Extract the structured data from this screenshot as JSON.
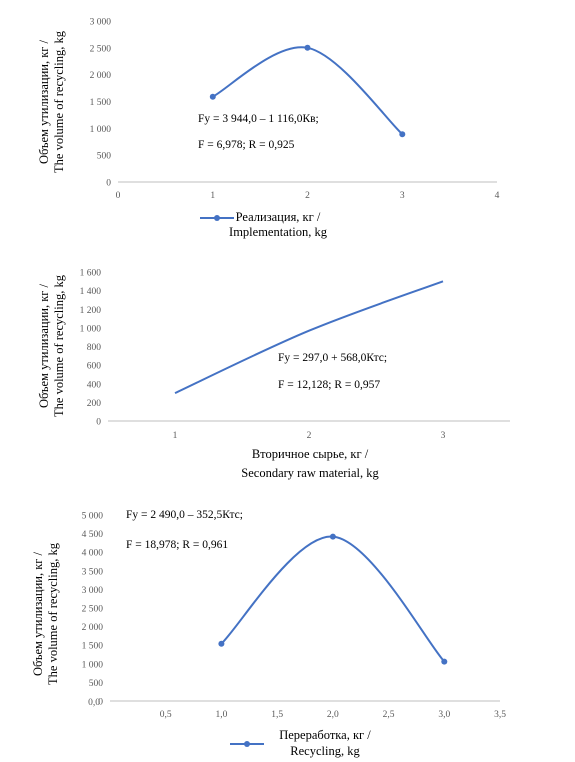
{
  "chart_data": [
    {
      "type": "line",
      "smooth": true,
      "markers": true,
      "x": [
        1,
        2,
        3
      ],
      "series": [
        {
          "name": "Реализация, кг / Implementation, kg",
          "values": [
            1590,
            2500,
            890
          ]
        }
      ],
      "xlim": [
        0,
        4
      ],
      "ylim": [
        0,
        3000
      ],
      "x_ticks": [
        "0",
        "1",
        "2",
        "3",
        "4"
      ],
      "y_ticks": [
        "0",
        "500",
        "1 000",
        "1 500",
        "2 000",
        "2 500",
        "3 000"
      ],
      "ylabel_lines": [
        "Объем утилизации, кг /",
        "The volume of recycling, kg"
      ],
      "legend_lines": [
        "Реализация, кг /",
        "Implementation, kg"
      ],
      "legend_position": "bottom",
      "annotation": [
        "Fу = 3 944,0 – 1 116,0Кв;",
        "F = 6,978; R = 0,925"
      ],
      "grid": false,
      "color": "#4472c4"
    },
    {
      "type": "line",
      "smooth": true,
      "markers": false,
      "x": [
        1,
        2,
        3
      ],
      "series": [
        {
          "name": "Вторичное сырье, кг / Secondary raw material, kg",
          "values": [
            300,
            970,
            1500
          ]
        }
      ],
      "xlim": [
        0.5,
        3.5
      ],
      "ylim": [
        0,
        1600
      ],
      "x_ticks": [
        "1",
        "2",
        "3"
      ],
      "y_ticks": [
        "0",
        "200",
        "400",
        "600",
        "800",
        "1 000",
        "1 200",
        "1 400",
        "1 600"
      ],
      "ylabel_lines": [
        "Объем утилизации, кг /",
        "The volume of recycling, kg"
      ],
      "xlabel_lines": [
        "Вторичное сырье, кг /",
        "Secondary raw material, kg"
      ],
      "annotation": [
        "Fу = 297,0 + 568,0Ктс;",
        "F = 12,128; R = 0,957"
      ],
      "grid": false,
      "color": "#4472c4"
    },
    {
      "type": "line",
      "smooth": true,
      "markers": true,
      "x": [
        1.0,
        2.0,
        3.0
      ],
      "series": [
        {
          "name": "Переработка, кг / Recycling, kg",
          "values": [
            1540,
            4420,
            1060
          ]
        }
      ],
      "xlim": [
        0,
        3.5
      ],
      "ylim": [
        0,
        5000
      ],
      "x_ticks": [
        "0,0",
        "0,5",
        "1,0",
        "1,5",
        "2,0",
        "2,5",
        "3,0",
        "3,5"
      ],
      "y_ticks": [
        "0",
        "500",
        "1 000",
        "1 500",
        "2 000",
        "2 500",
        "3 000",
        "3 500",
        "4 000",
        "4 500",
        "5 000"
      ],
      "ylabel_lines": [
        "Объем утилизации, кг /",
        "The volume of recycling, kg"
      ],
      "legend_lines": [
        "Переработка, кг /",
        "Recycling, kg"
      ],
      "legend_position": "bottom",
      "annotation": [
        "Fу = 2 490,0 – 352,5Ктс;",
        "F = 18,978; R = 0,961"
      ],
      "grid": false,
      "color": "#4472c4"
    }
  ]
}
